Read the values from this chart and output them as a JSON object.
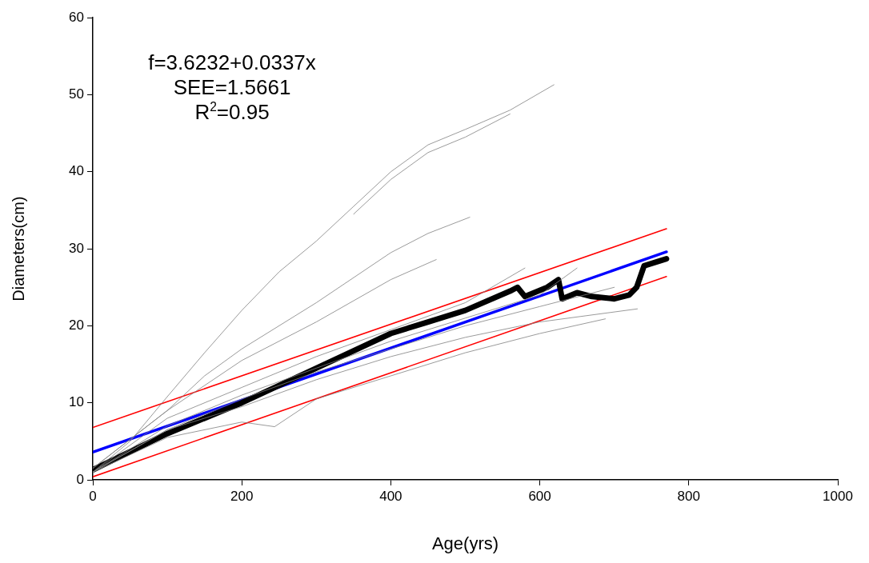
{
  "chart_data": {
    "type": "line",
    "xlabel": "Age(yrs)",
    "ylabel": "Diameters(cm)",
    "xlim": [
      0,
      1000
    ],
    "xticks": [
      0,
      200,
      400,
      600,
      800,
      1000
    ],
    "ylim": [
      0,
      60
    ],
    "yticks": [
      0,
      10,
      20,
      30,
      40,
      50,
      60
    ],
    "grid": false,
    "legend": false,
    "marker": "none",
    "line_style": "solid",
    "annotations": [
      "f=3.6232+0.0337x",
      "SEE=1.5661",
      "R$^{2}$=0.95"
    ],
    "series": [
      {
        "color": "#808080",
        "x": [
          0,
          50,
          100,
          150,
          200,
          250,
          300,
          350,
          400,
          450,
          500,
          560,
          619
        ],
        "values": [
          1,
          5,
          10.8,
          16.5,
          22,
          27,
          31,
          35.5,
          40,
          43.5,
          45.5,
          48,
          51.3
        ]
      },
      {
        "color": "#808080",
        "x": [
          350,
          400,
          450,
          500,
          560
        ],
        "values": [
          34.5,
          39,
          42.5,
          44.5,
          47.5
        ]
      },
      {
        "color": "#808080",
        "x": [
          0,
          100,
          150,
          200,
          300,
          400,
          450,
          506
        ],
        "values": [
          1.5,
          9,
          13.5,
          17,
          23,
          29.5,
          32,
          34.1
        ]
      },
      {
        "color": "#808080",
        "x": [
          0,
          100,
          200,
          300,
          400,
          461
        ],
        "values": [
          1.5,
          9,
          15.5,
          20.5,
          26,
          28.6
        ]
      },
      {
        "color": "#808080",
        "x": [
          0,
          100,
          200,
          244,
          300,
          400,
          500,
          600,
          688
        ],
        "values": [
          1,
          5.5,
          7.5,
          6.9,
          10.5,
          13.5,
          16.5,
          19,
          20.9
        ]
      },
      {
        "color": "#808080",
        "x": [
          0,
          100,
          200,
          300,
          400,
          500,
          600,
          731
        ],
        "values": [
          1,
          6.5,
          9.5,
          13,
          16,
          18.5,
          20.5,
          22.2
        ]
      },
      {
        "color": "#808080",
        "x": [
          0,
          100,
          200,
          300,
          400,
          500,
          600,
          650
        ],
        "values": [
          1,
          7,
          11,
          14.5,
          18,
          21,
          24,
          27.5
        ]
      },
      {
        "color": "#808080",
        "x": [
          0,
          100,
          200,
          300,
          400,
          500,
          580
        ],
        "values": [
          1,
          8,
          12,
          16,
          19.5,
          23,
          27.5
        ]
      },
      {
        "color": "#808080",
        "x": [
          0,
          100,
          200,
          300,
          400,
          500,
          600,
          700
        ],
        "values": [
          1,
          6.5,
          10.5,
          14,
          17,
          20,
          22.5,
          25
        ]
      },
      {
        "color": "#000000",
        "x": [
          0,
          100,
          200,
          300,
          400,
          450,
          500,
          560,
          570,
          580,
          610,
          625,
          630,
          650,
          670,
          700,
          720,
          730,
          740,
          770
        ],
        "values": [
          1.3,
          6,
          10,
          14.5,
          19,
          20.5,
          22,
          24.5,
          25,
          23.8,
          25,
          26,
          23.5,
          24.3,
          23.8,
          23.5,
          24,
          25,
          27.8,
          28.7
        ]
      },
      {
        "color": "#0000ff",
        "x": [
          0,
          770
        ],
        "values": [
          3.6,
          29.6
        ]
      },
      {
        "color": "#ff0000",
        "x": [
          0,
          770
        ],
        "values": [
          6.8,
          32.6
        ]
      },
      {
        "color": "#ff0000",
        "x": [
          0,
          770
        ],
        "values": [
          0.4,
          26.4
        ]
      }
    ]
  }
}
